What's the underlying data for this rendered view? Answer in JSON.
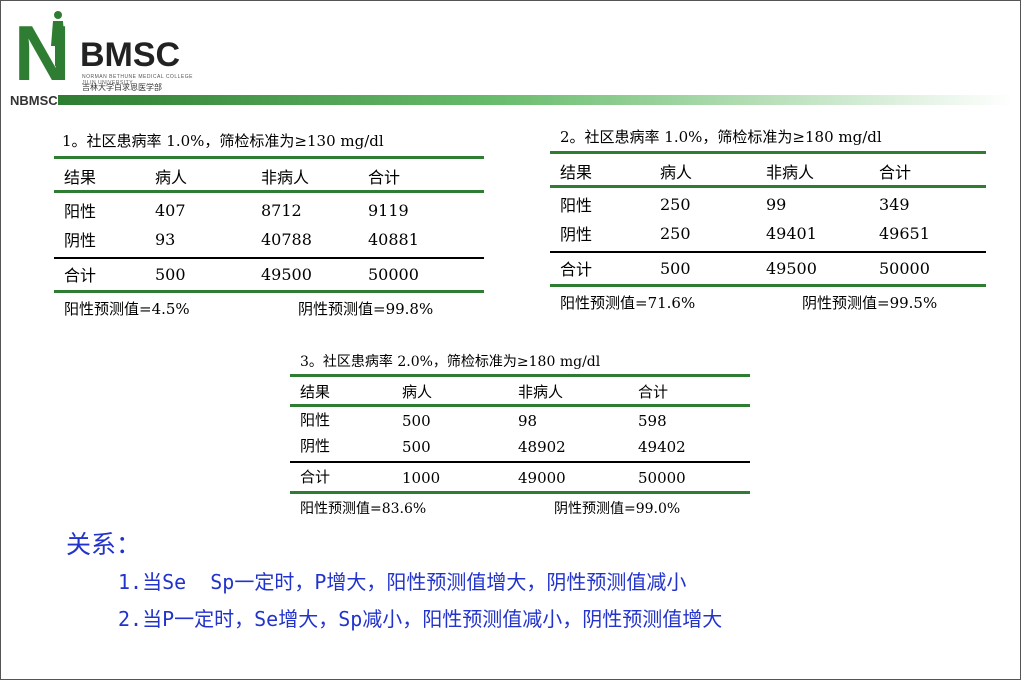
{
  "logo": {
    "main": "BMSC",
    "sub_en": "NORMAN BETHUNE MEDICAL COLLEGE JILIN UNIVERSITY",
    "sub_cn": "吉林大学白求恩医学部",
    "brand": "NBMSC"
  },
  "colors": {
    "brand_green": "#2e7d32",
    "relation_blue": "#2233cc"
  },
  "tables": [
    {
      "caption": "1。社区患病率 1.0%，筛检标准为≥130 mg/dl",
      "header": [
        "结果",
        "病人",
        "非病人",
        "合计"
      ],
      "rows": [
        [
          "阳性",
          "407",
          "8712",
          "9119"
        ],
        [
          "阴性",
          "93",
          "40788",
          "40881"
        ]
      ],
      "total": [
        "合计",
        "500",
        "49500",
        "50000"
      ],
      "ppv": "阳性预测值=4.5%",
      "npv": "阴性预测值=99.8%"
    },
    {
      "caption": "2。社区患病率 1.0%，筛检标准为≥180 mg/dl",
      "header": [
        "结果",
        "病人",
        "非病人",
        "合计"
      ],
      "rows": [
        [
          "阳性",
          "250",
          "99",
          "349"
        ],
        [
          "阴性",
          "250",
          "49401",
          "49651"
        ]
      ],
      "total": [
        "合计",
        "500",
        "49500",
        "50000"
      ],
      "ppv": "阳性预测值=71.6%",
      "npv": "阴性预测值=99.5%"
    },
    {
      "caption": "3。社区患病率 2.0%，筛检标准为≥180 mg/dl",
      "header": [
        "结果",
        "病人",
        "非病人",
        "合计"
      ],
      "rows": [
        [
          "阳性",
          "500",
          "98",
          "598"
        ],
        [
          "阴性",
          "500",
          "48902",
          "49402"
        ]
      ],
      "total": [
        "合计",
        "1000",
        "49000",
        "50000"
      ],
      "ppv": "阳性预测值=83.6%",
      "npv": "阴性预测值=99.0%"
    }
  ],
  "relation": {
    "title": "关系：",
    "lines": [
      "1.当Se  Sp一定时，P增大，阳性预测值增大，阴性预测值减小",
      "2.当P一定时，Se增大，Sp减小，阳性预测值减小，阴性预测值增大"
    ]
  }
}
